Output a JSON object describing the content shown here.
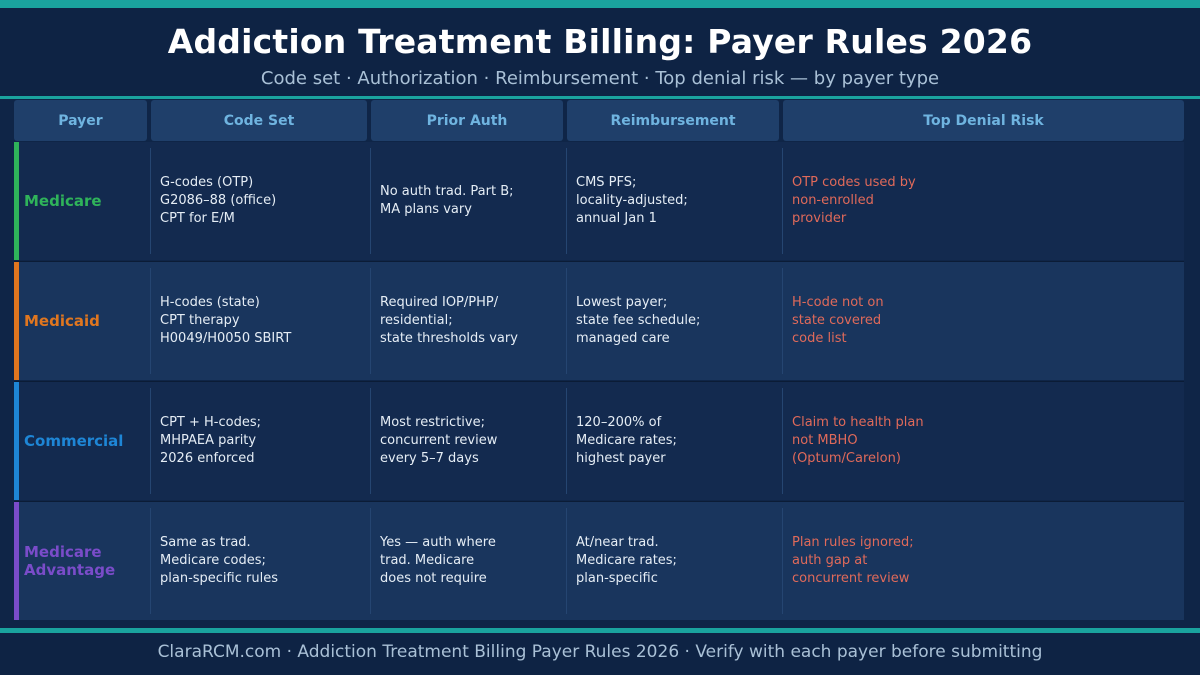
{
  "title": "Addiction Treatment Billing: Payer Rules 2026",
  "subtitle": "Code set · Authorization · Reimbursement · Top denial risk — by payer type",
  "colors": {
    "teal_accent": "#1aa39e",
    "risk_text": "#e06a5a"
  },
  "table": {
    "headers": [
      "Payer",
      "Code Set",
      "Prior Auth",
      "Reimbursement",
      "Top Denial Risk"
    ],
    "rows": [
      {
        "payer": "Medicare",
        "color": "#2fb35a",
        "code_set": "G-codes (OTP)\nG2086–88 (office)\nCPT for E/M",
        "prior_auth": "No auth trad. Part B;\nMA plans vary",
        "reimbursement": "CMS PFS;\nlocality-adjusted;\nannual Jan 1",
        "denial_risk": "OTP codes used by\nnon-enrolled\nprovider"
      },
      {
        "payer": "Medicaid",
        "color": "#e0761f",
        "code_set": "H-codes (state)\nCPT therapy\nH0049/H0050 SBIRT",
        "prior_auth": "Required IOP/PHP/\nresidential;\nstate thresholds vary",
        "reimbursement": "Lowest payer;\nstate fee schedule;\nmanaged care",
        "denial_risk": "H-code not on\nstate covered\ncode list"
      },
      {
        "payer": "Commercial",
        "color": "#1e86d6",
        "code_set": "CPT + H-codes;\nMHPAEA parity\n2026 enforced",
        "prior_auth": "Most restrictive;\nconcurrent review\nevery 5–7 days",
        "reimbursement": "120–200% of\nMedicare rates;\nhighest payer",
        "denial_risk": "Claim to health plan\nnot MBHO\n(Optum/Carelon)"
      },
      {
        "payer": "Medicare\nAdvantage",
        "color": "#7a4cc9",
        "code_set": "Same as trad.\nMedicare codes;\nplan-specific rules",
        "prior_auth": "Yes — auth where\ntrad. Medicare\ndoes not require",
        "reimbursement": "At/near trad.\nMedicare rates;\nplan-specific",
        "denial_risk": "Plan rules ignored;\nauth gap at\nconcurrent review"
      }
    ]
  },
  "footer": "ClaraRCM.com · Addiction Treatment Billing Payer Rules 2026 · Verify with each payer before submitting"
}
